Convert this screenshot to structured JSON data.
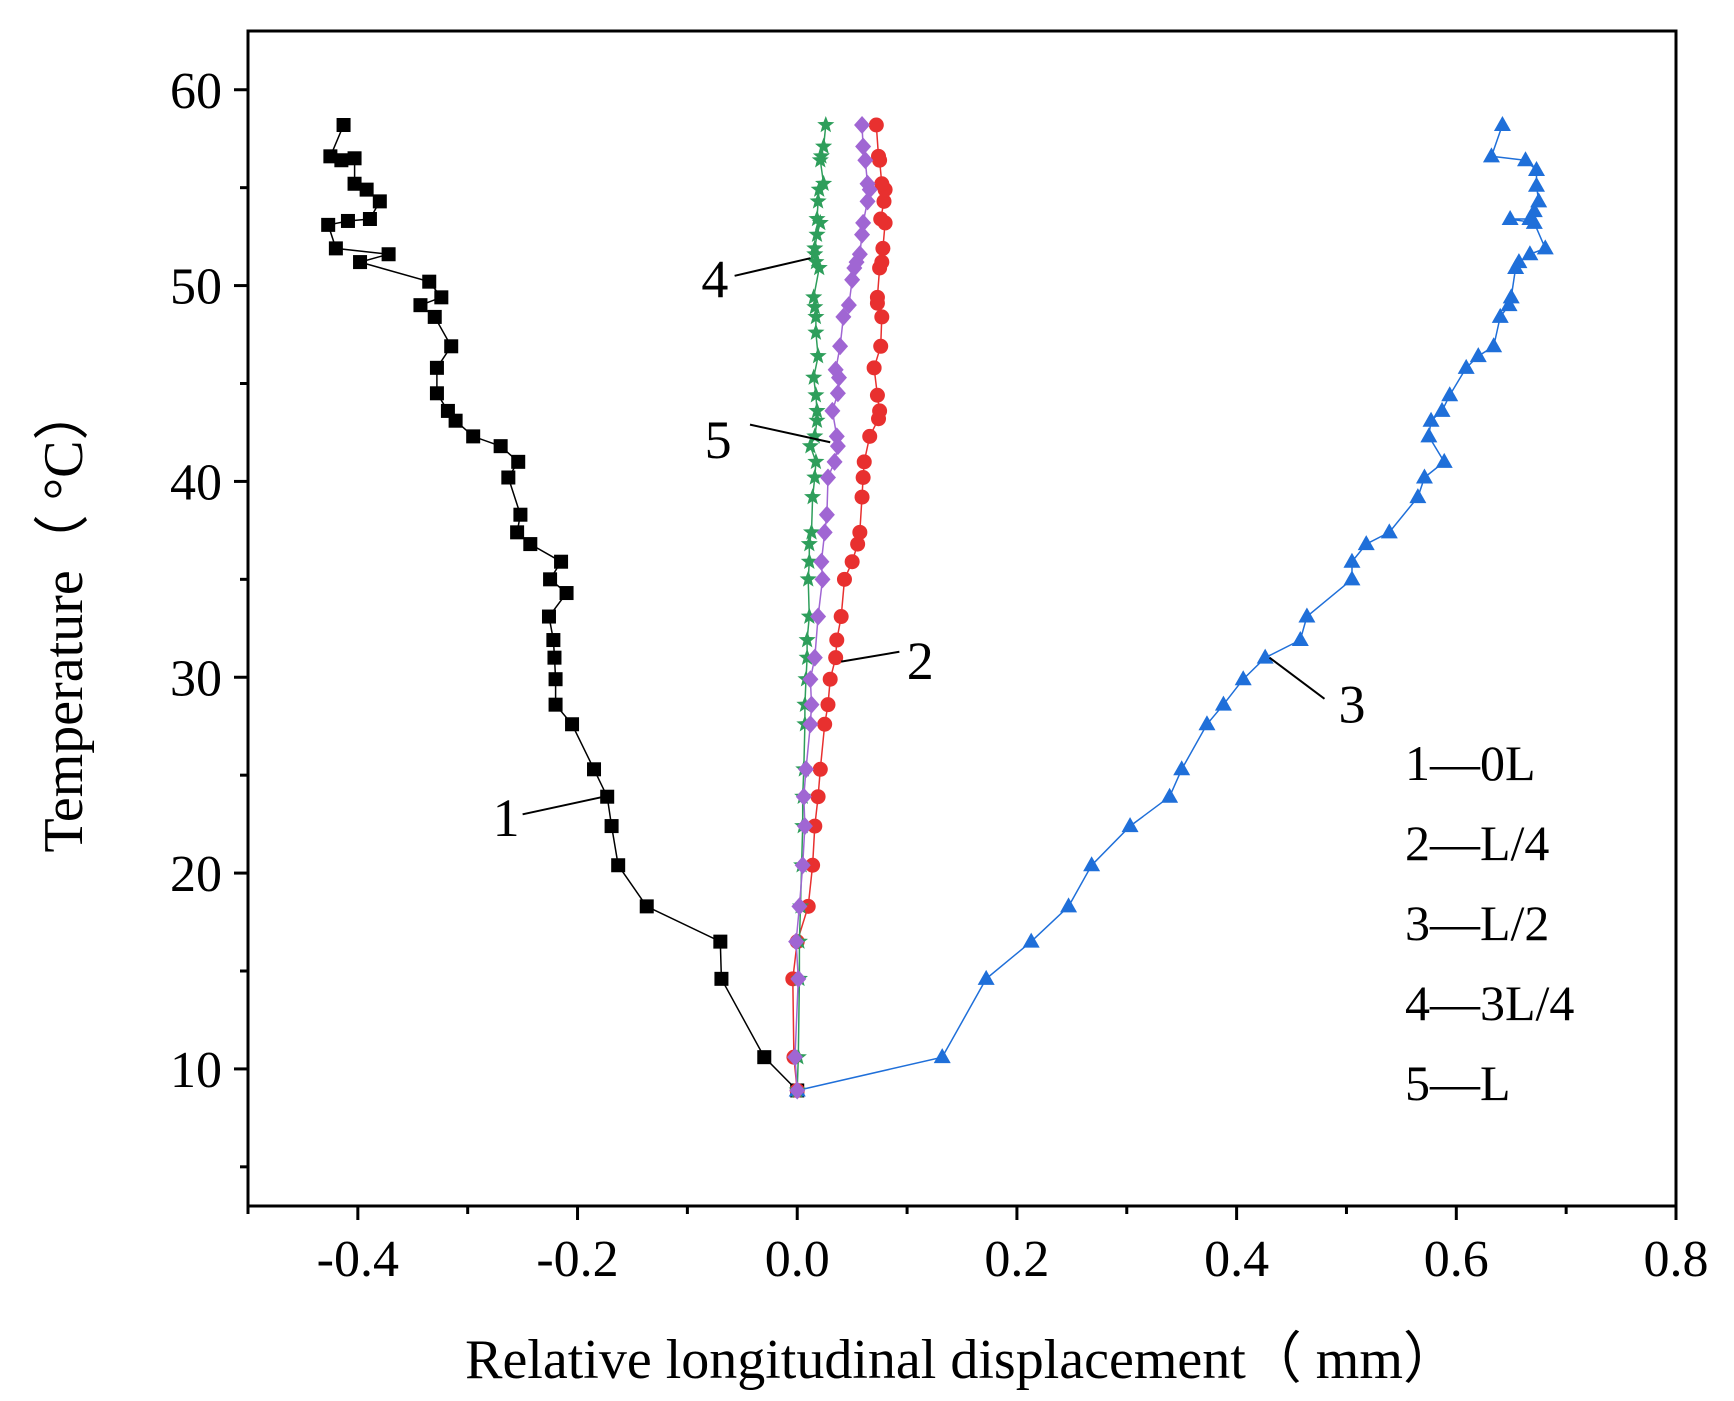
{
  "chart_data": {
    "type": "scatter",
    "title": "",
    "xlabel": "Relative longitudinal displacement（ mm）",
    "ylabel": "Temperature（ °C）",
    "xlim": [
      -0.5,
      0.8
    ],
    "ylim": [
      3,
      63
    ],
    "xticks": [
      -0.4,
      -0.2,
      0.0,
      0.2,
      0.4,
      0.6,
      0.8
    ],
    "xtick_labels": [
      "-0.4",
      "-0.2",
      "0.0",
      "0.2",
      "0.4",
      "0.6",
      "0.8"
    ],
    "yticks": [
      10,
      20,
      30,
      40,
      50,
      60
    ],
    "ytick_labels": [
      "10",
      "20",
      "30",
      "40",
      "50",
      "60"
    ],
    "grid": false,
    "legend": {
      "position": "bottom-right",
      "entries": [
        "1—0L",
        "2—L/4",
        "3—L/2",
        "4—3L/4",
        "5—L"
      ]
    },
    "series": [
      {
        "name": "1",
        "label": "0L",
        "color": "#000000",
        "marker": "square",
        "annotation": "1",
        "points": [
          [
            0.0,
            8.9
          ],
          [
            -0.03,
            10.6
          ],
          [
            -0.069,
            14.6
          ],
          [
            -0.07,
            16.5
          ],
          [
            -0.137,
            18.3
          ],
          [
            -0.163,
            20.4
          ],
          [
            -0.169,
            22.4
          ],
          [
            -0.173,
            23.9
          ],
          [
            -0.185,
            25.3
          ],
          [
            -0.205,
            27.6
          ],
          [
            -0.22,
            28.6
          ],
          [
            -0.22,
            29.9
          ],
          [
            -0.221,
            31.0
          ],
          [
            -0.222,
            31.9
          ],
          [
            -0.226,
            33.1
          ],
          [
            -0.21,
            34.3
          ],
          [
            -0.225,
            35.0
          ],
          [
            -0.215,
            35.9
          ],
          [
            -0.243,
            36.8
          ],
          [
            -0.255,
            37.4
          ],
          [
            -0.252,
            38.3
          ],
          [
            -0.263,
            40.2
          ],
          [
            -0.254,
            41.0
          ],
          [
            -0.27,
            41.8
          ],
          [
            -0.295,
            42.3
          ],
          [
            -0.311,
            43.1
          ],
          [
            -0.318,
            43.6
          ],
          [
            -0.328,
            44.5
          ],
          [
            -0.328,
            45.8
          ],
          [
            -0.315,
            46.9
          ],
          [
            -0.33,
            48.4
          ],
          [
            -0.343,
            49.0
          ],
          [
            -0.324,
            49.4
          ],
          [
            -0.335,
            50.2
          ],
          [
            -0.398,
            51.2
          ],
          [
            -0.372,
            51.6
          ],
          [
            -0.42,
            51.9
          ],
          [
            -0.427,
            53.1
          ],
          [
            -0.409,
            53.3
          ],
          [
            -0.389,
            53.4
          ],
          [
            -0.38,
            54.3
          ],
          [
            -0.392,
            54.9
          ],
          [
            -0.403,
            55.2
          ],
          [
            -0.403,
            56.5
          ],
          [
            -0.415,
            56.4
          ],
          [
            -0.425,
            56.6
          ],
          [
            -0.413,
            58.2
          ]
        ]
      },
      {
        "name": "2",
        "label": "L/4",
        "color": "#e8302f",
        "marker": "circle",
        "annotation": "2",
        "points": [
          [
            0.0,
            8.9
          ],
          [
            -0.003,
            10.6
          ],
          [
            -0.004,
            14.6
          ],
          [
            0.0,
            16.5
          ],
          [
            0.01,
            18.3
          ],
          [
            0.014,
            20.4
          ],
          [
            0.016,
            22.4
          ],
          [
            0.019,
            23.9
          ],
          [
            0.021,
            25.3
          ],
          [
            0.025,
            27.6
          ],
          [
            0.028,
            28.6
          ],
          [
            0.03,
            29.9
          ],
          [
            0.035,
            31.0
          ],
          [
            0.036,
            31.9
          ],
          [
            0.04,
            33.1
          ],
          [
            0.043,
            35.0
          ],
          [
            0.05,
            35.9
          ],
          [
            0.055,
            36.8
          ],
          [
            0.057,
            37.4
          ],
          [
            0.059,
            39.2
          ],
          [
            0.06,
            40.2
          ],
          [
            0.061,
            41.0
          ],
          [
            0.066,
            42.3
          ],
          [
            0.074,
            43.2
          ],
          [
            0.075,
            43.6
          ],
          [
            0.073,
            44.4
          ],
          [
            0.07,
            45.8
          ],
          [
            0.076,
            46.9
          ],
          [
            0.077,
            48.4
          ],
          [
            0.073,
            49.1
          ],
          [
            0.073,
            49.4
          ],
          [
            0.075,
            50.9
          ],
          [
            0.077,
            51.2
          ],
          [
            0.078,
            51.9
          ],
          [
            0.08,
            53.2
          ],
          [
            0.076,
            53.4
          ],
          [
            0.079,
            54.3
          ],
          [
            0.08,
            54.9
          ],
          [
            0.077,
            55.2
          ],
          [
            0.075,
            56.4
          ],
          [
            0.074,
            56.6
          ],
          [
            0.072,
            58.2
          ]
        ]
      },
      {
        "name": "3",
        "label": "L/2",
        "color": "#1f6fd9",
        "marker": "triangle",
        "annotation": "3",
        "points": [
          [
            0.0,
            8.9
          ],
          [
            0.132,
            10.6
          ],
          [
            0.172,
            14.6
          ],
          [
            0.213,
            16.5
          ],
          [
            0.247,
            18.3
          ],
          [
            0.268,
            20.4
          ],
          [
            0.303,
            22.4
          ],
          [
            0.339,
            23.9
          ],
          [
            0.35,
            25.3
          ],
          [
            0.373,
            27.6
          ],
          [
            0.388,
            28.6
          ],
          [
            0.406,
            29.9
          ],
          [
            0.426,
            31.0
          ],
          [
            0.458,
            31.9
          ],
          [
            0.464,
            33.1
          ],
          [
            0.505,
            35.0
          ],
          [
            0.505,
            35.9
          ],
          [
            0.518,
            36.8
          ],
          [
            0.539,
            37.4
          ],
          [
            0.565,
            39.2
          ],
          [
            0.571,
            40.2
          ],
          [
            0.589,
            41.0
          ],
          [
            0.575,
            42.3
          ],
          [
            0.577,
            43.1
          ],
          [
            0.587,
            43.6
          ],
          [
            0.594,
            44.4
          ],
          [
            0.609,
            45.8
          ],
          [
            0.62,
            46.4
          ],
          [
            0.634,
            46.9
          ],
          [
            0.64,
            48.4
          ],
          [
            0.648,
            49.0
          ],
          [
            0.65,
            49.4
          ],
          [
            0.654,
            50.9
          ],
          [
            0.657,
            51.2
          ],
          [
            0.667,
            51.6
          ],
          [
            0.681,
            51.9
          ],
          [
            0.671,
            53.2
          ],
          [
            0.649,
            53.4
          ],
          [
            0.667,
            53.4
          ],
          [
            0.671,
            53.8
          ],
          [
            0.675,
            54.3
          ],
          [
            0.673,
            55.1
          ],
          [
            0.673,
            55.9
          ],
          [
            0.663,
            56.4
          ],
          [
            0.632,
            56.6
          ],
          [
            0.642,
            58.2
          ]
        ]
      },
      {
        "name": "4",
        "label": "3L/4",
        "color": "#2e9e5b",
        "marker": "star",
        "annotation": "4",
        "points": [
          [
            0.0,
            8.9
          ],
          [
            0.001,
            10.6
          ],
          [
            0.002,
            14.6
          ],
          [
            0.002,
            16.5
          ],
          [
            0.003,
            18.3
          ],
          [
            0.004,
            20.4
          ],
          [
            0.005,
            22.4
          ],
          [
            0.005,
            23.9
          ],
          [
            0.006,
            25.3
          ],
          [
            0.007,
            27.6
          ],
          [
            0.007,
            28.6
          ],
          [
            0.008,
            29.9
          ],
          [
            0.009,
            31.0
          ],
          [
            0.009,
            31.9
          ],
          [
            0.011,
            33.1
          ],
          [
            0.01,
            35.0
          ],
          [
            0.011,
            35.9
          ],
          [
            0.011,
            36.8
          ],
          [
            0.013,
            37.4
          ],
          [
            0.014,
            39.2
          ],
          [
            0.016,
            40.2
          ],
          [
            0.017,
            41.0
          ],
          [
            0.012,
            41.8
          ],
          [
            0.016,
            42.3
          ],
          [
            0.018,
            43.1
          ],
          [
            0.018,
            43.6
          ],
          [
            0.017,
            44.4
          ],
          [
            0.015,
            45.3
          ],
          [
            0.019,
            46.4
          ],
          [
            0.017,
            47.6
          ],
          [
            0.017,
            48.4
          ],
          [
            0.016,
            48.9
          ],
          [
            0.015,
            49.4
          ],
          [
            0.02,
            50.9
          ],
          [
            0.017,
            51.2
          ],
          [
            0.016,
            51.6
          ],
          [
            0.016,
            51.9
          ],
          [
            0.018,
            52.6
          ],
          [
            0.021,
            53.2
          ],
          [
            0.018,
            53.4
          ],
          [
            0.019,
            54.3
          ],
          [
            0.02,
            54.9
          ],
          [
            0.024,
            55.2
          ],
          [
            0.021,
            56.4
          ],
          [
            0.022,
            56.6
          ],
          [
            0.024,
            57.1
          ],
          [
            0.026,
            58.2
          ]
        ]
      },
      {
        "name": "5",
        "label": "L",
        "color": "#a066d3",
        "marker": "diamond",
        "annotation": "5",
        "points": [
          [
            0.0,
            8.9
          ],
          [
            -0.002,
            10.6
          ],
          [
            0.001,
            14.6
          ],
          [
            -0.001,
            16.5
          ],
          [
            0.002,
            18.3
          ],
          [
            0.005,
            20.4
          ],
          [
            0.007,
            22.4
          ],
          [
            0.006,
            23.9
          ],
          [
            0.008,
            25.3
          ],
          [
            0.012,
            27.6
          ],
          [
            0.013,
            28.6
          ],
          [
            0.012,
            29.9
          ],
          [
            0.016,
            31.0
          ],
          [
            0.019,
            33.1
          ],
          [
            0.023,
            35.0
          ],
          [
            0.022,
            35.9
          ],
          [
            0.025,
            37.4
          ],
          [
            0.027,
            38.3
          ],
          [
            0.028,
            40.2
          ],
          [
            0.034,
            41.0
          ],
          [
            0.037,
            41.8
          ],
          [
            0.036,
            42.3
          ],
          [
            0.032,
            43.6
          ],
          [
            0.037,
            44.5
          ],
          [
            0.038,
            45.3
          ],
          [
            0.035,
            45.7
          ],
          [
            0.039,
            46.9
          ],
          [
            0.042,
            48.4
          ],
          [
            0.047,
            49.0
          ],
          [
            0.05,
            50.3
          ],
          [
            0.052,
            50.9
          ],
          [
            0.054,
            51.2
          ],
          [
            0.057,
            51.6
          ],
          [
            0.059,
            52.6
          ],
          [
            0.06,
            53.2
          ],
          [
            0.064,
            54.3
          ],
          [
            0.066,
            54.9
          ],
          [
            0.064,
            55.2
          ],
          [
            0.062,
            56.4
          ],
          [
            0.06,
            57.1
          ],
          [
            0.059,
            58.2
          ]
        ]
      }
    ]
  }
}
